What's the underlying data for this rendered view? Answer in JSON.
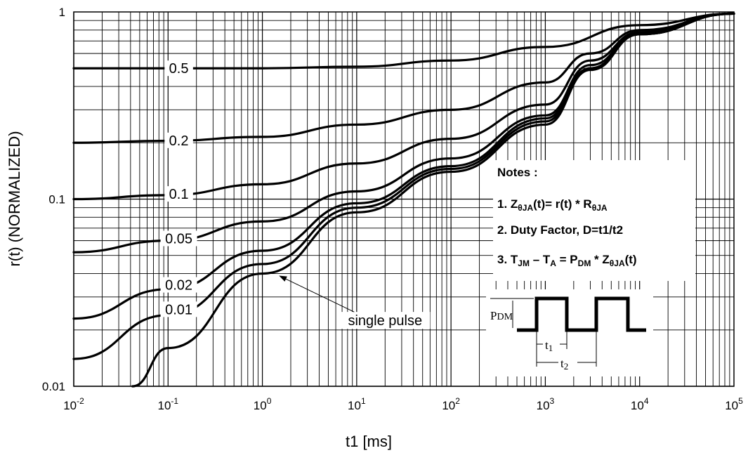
{
  "chart_data": {
    "type": "line",
    "xlabel": "t1 [ms]",
    "ylabel": "r(t)  (NORMALIZED)",
    "x_scale": "log",
    "y_scale": "log",
    "xlim": [
      0.01,
      100000
    ],
    "ylim": [
      0.01,
      1
    ],
    "grid": true,
    "x_ticks": [
      {
        "base": "10",
        "exp": "-2",
        "value": 0.01
      },
      {
        "base": "10",
        "exp": "-1",
        "value": 0.1
      },
      {
        "base": "10",
        "exp": "0",
        "value": 1
      },
      {
        "base": "10",
        "exp": "1",
        "value": 10
      },
      {
        "base": "10",
        "exp": "2",
        "value": 100
      },
      {
        "base": "10",
        "exp": "3",
        "value": 1000
      },
      {
        "base": "10",
        "exp": "4",
        "value": 10000
      },
      {
        "base": "10",
        "exp": "5",
        "value": 100000
      }
    ],
    "y_ticks": [
      {
        "label": "1",
        "value": 1
      },
      {
        "label": "0.1",
        "value": 0.1
      },
      {
        "label": "0.01",
        "value": 0.01
      }
    ],
    "series": [
      {
        "name": "0.5",
        "label_at": 0.13,
        "points": [
          [
            0.01,
            0.5
          ],
          [
            0.1,
            0.5
          ],
          [
            1,
            0.5
          ],
          [
            10,
            0.51
          ],
          [
            100,
            0.55
          ],
          [
            1000,
            0.65
          ],
          [
            10000,
            0.85
          ],
          [
            100000,
            0.98
          ]
        ]
      },
      {
        "name": "0.2",
        "label_at": 0.13,
        "points": [
          [
            0.01,
            0.2
          ],
          [
            0.1,
            0.205
          ],
          [
            1,
            0.215
          ],
          [
            10,
            0.25
          ],
          [
            100,
            0.3
          ],
          [
            1000,
            0.42
          ],
          [
            3000,
            0.6
          ],
          [
            10000,
            0.8
          ],
          [
            100000,
            0.98
          ]
        ]
      },
      {
        "name": "0.1",
        "label_at": 0.13,
        "points": [
          [
            0.01,
            0.1
          ],
          [
            0.1,
            0.105
          ],
          [
            1,
            0.12
          ],
          [
            10,
            0.155
          ],
          [
            100,
            0.21
          ],
          [
            1000,
            0.32
          ],
          [
            3000,
            0.55
          ],
          [
            10000,
            0.78
          ],
          [
            100000,
            0.98
          ]
        ]
      },
      {
        "name": "0.05",
        "label_at": 0.13,
        "points": [
          [
            0.01,
            0.052
          ],
          [
            0.1,
            0.06
          ],
          [
            1,
            0.076
          ],
          [
            10,
            0.11
          ],
          [
            100,
            0.165
          ],
          [
            1000,
            0.28
          ],
          [
            3000,
            0.52
          ],
          [
            10000,
            0.77
          ],
          [
            100000,
            0.98
          ]
        ]
      },
      {
        "name": "0.02",
        "label_at": 0.13,
        "points": [
          [
            0.01,
            0.023
          ],
          [
            0.1,
            0.033
          ],
          [
            1,
            0.053
          ],
          [
            10,
            0.095
          ],
          [
            100,
            0.15
          ],
          [
            1000,
            0.27
          ],
          [
            3000,
            0.5
          ],
          [
            10000,
            0.76
          ],
          [
            100000,
            0.98
          ]
        ]
      },
      {
        "name": "0.01",
        "label_at": 0.13,
        "points": [
          [
            0.01,
            0.014
          ],
          [
            0.1,
            0.024
          ],
          [
            1,
            0.045
          ],
          [
            10,
            0.09
          ],
          [
            100,
            0.145
          ],
          [
            1000,
            0.26
          ],
          [
            3000,
            0.5
          ],
          [
            10000,
            0.76
          ],
          [
            100000,
            0.98
          ]
        ]
      },
      {
        "name": "single pulse",
        "label_at": null,
        "points": [
          [
            0.042,
            0.01
          ],
          [
            0.1,
            0.016
          ],
          [
            1,
            0.04
          ],
          [
            10,
            0.085
          ],
          [
            100,
            0.14
          ],
          [
            1000,
            0.25
          ],
          [
            3000,
            0.49
          ],
          [
            10000,
            0.76
          ],
          [
            100000,
            0.98
          ]
        ]
      }
    ],
    "annotations": [
      {
        "text": "single pulse",
        "target": [
          1.5,
          0.039
        ],
        "text_at": [
          20,
          0.0225
        ]
      }
    ]
  },
  "notes": {
    "title": "Notes :",
    "line1": {
      "prefix": "1. Z",
      "sub1": "θJA",
      "mid": "(t)= r(t) * R",
      "sub2": "θJA"
    },
    "line2": "2. Duty Factor, D=t1/t2",
    "line3": {
      "p1": "3. T",
      "s1": "JM",
      "p2": " – T",
      "s2": "A",
      "p3": " = P",
      "s3": "DM",
      "p4": " * Z",
      "s4": "θJA",
      "p5": "(t)"
    }
  },
  "pulse_diagram": {
    "pdm_label": "P",
    "pdm_sub": "DM",
    "t1_label": "t",
    "t1_sub": "1",
    "t2_label": "t",
    "t2_sub": "2"
  },
  "colors": {
    "line": "#000000",
    "grid": "#000000",
    "background": "#ffffff"
  }
}
